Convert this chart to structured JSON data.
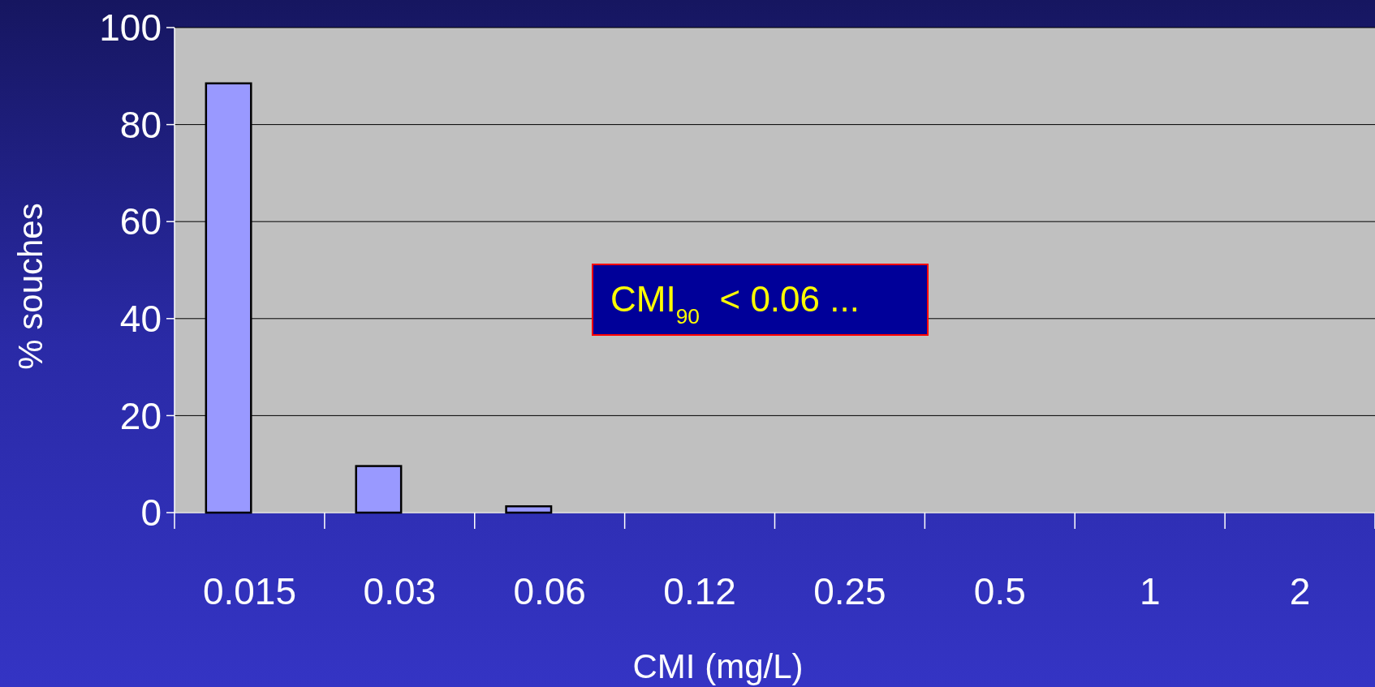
{
  "chart_data": {
    "type": "bar",
    "xlabel": "CMI (mg/L)",
    "ylabel": "% souches",
    "categories": [
      "0.015",
      "0.03",
      "0.06",
      "0.12",
      "0.25",
      "0.5",
      "1",
      "2"
    ],
    "values": [
      88.5,
      9.6,
      1.3,
      0,
      0,
      0,
      0,
      0
    ],
    "color": "#9999ff",
    "ylim": [
      0,
      100
    ],
    "yticks": [
      0,
      20,
      40,
      60,
      80,
      100
    ],
    "grid": "y",
    "annotations": [
      "CMI$_{90}$  < 0.06 ..."
    ]
  }
}
